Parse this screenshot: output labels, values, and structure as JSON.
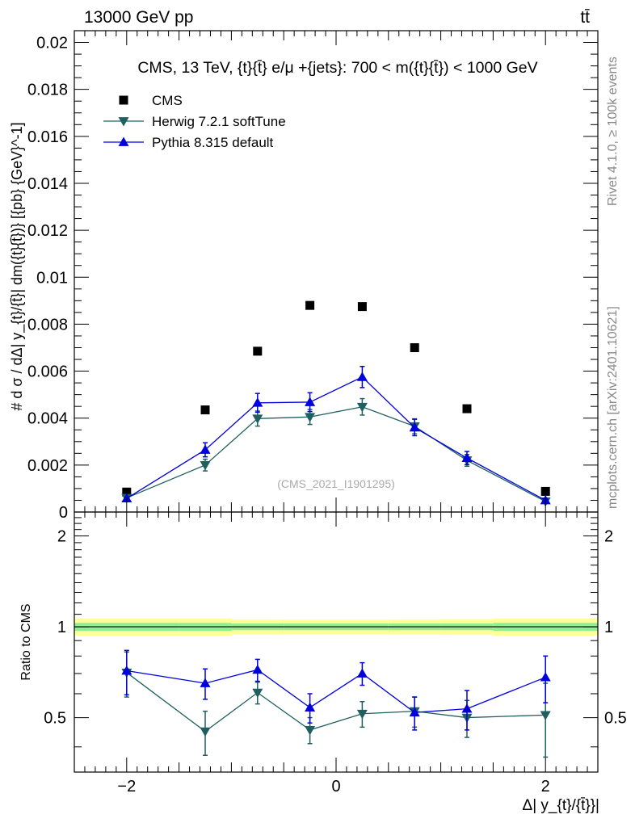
{
  "header": {
    "energy_label": "13000 GeV pp",
    "process_label": "tt̄"
  },
  "side_labels": {
    "rivet": "Rivet 4.1.0, ≥ 100k events",
    "source": "mcplots.cern.ch [arXiv:2401.10621]"
  },
  "chart_data": {
    "type": "scatter",
    "title": "CMS, 13 TeV, {t}{t̄} e/μ +{jets}: 700 < m({t}{t̄}) < 1000 GeV",
    "watermark": "(CMS_2021_I1901295)",
    "xlabel": "Δ| y_{t}/{t̄}}|",
    "ylabel": "# d σ / dΔ| y_{t}/{t̄}| dm({t}{t̄})} [{pb} {GeV}^-1]",
    "ratio_ylabel": "Ratio to CMS",
    "x_ticks": [
      "−2",
      "0",
      "2"
    ],
    "y_ticks": [
      "0",
      "0.002",
      "0.004",
      "0.006",
      "0.008",
      "0.01",
      "0.012",
      "0.014",
      "0.016",
      "0.018",
      "0.02"
    ],
    "ratio_ticks": [
      "0.5",
      "1",
      "2"
    ],
    "xlim": [
      -2.5,
      2.5
    ],
    "ylim": [
      0,
      0.0205
    ],
    "ratio_ylim": [
      0.33,
      2.4
    ],
    "x": [
      -2.0,
      -1.25,
      -0.75,
      -0.25,
      0.25,
      0.75,
      1.25,
      2.0
    ],
    "band_edges": [
      -2.5,
      -1.5,
      -1.0,
      -0.5,
      0.0,
      0.5,
      1.0,
      1.5,
      2.5
    ],
    "series": [
      {
        "name": "CMS",
        "color": "#000000",
        "marker": "square",
        "values": [
          0.00085,
          0.00435,
          0.00685,
          0.0088,
          0.00875,
          0.007,
          0.0044,
          0.00088
        ]
      },
      {
        "name": "Herwig 7.2.1 softTune",
        "color": "#1f5f5f",
        "marker": "triangle-down",
        "values": [
          0.0006,
          0.002,
          0.00398,
          0.00405,
          0.00448,
          0.00365,
          0.0022,
          0.00045
        ],
        "errors": [
          4e-05,
          0.00025,
          0.00032,
          0.00032,
          0.00035,
          0.00032,
          0.00025,
          8e-05
        ],
        "ratio": [
          0.705,
          0.45,
          0.605,
          0.455,
          0.515,
          0.525,
          0.5,
          0.51
        ],
        "ratio_errors": [
          0.12,
          0.075,
          0.05,
          0.045,
          0.05,
          0.06,
          0.07,
          0.14
        ]
      },
      {
        "name": "Pythia 8.315 default",
        "color": "#0000dd",
        "marker": "triangle-up",
        "values": [
          0.00058,
          0.00265,
          0.00465,
          0.00468,
          0.00575,
          0.0036,
          0.0023,
          0.0005
        ],
        "errors": [
          4e-05,
          0.0003,
          0.0004,
          0.0004,
          0.00045,
          0.00035,
          0.00028,
          8e-05
        ],
        "ratio": [
          0.715,
          0.65,
          0.72,
          0.54,
          0.7,
          0.52,
          0.535,
          0.68
        ],
        "ratio_errors": [
          0.12,
          0.075,
          0.06,
          0.06,
          0.06,
          0.065,
          0.08,
          0.12
        ]
      }
    ],
    "uncertainty_band": {
      "inner_color": "#90ee90",
      "outer_color": "#ffff99",
      "inner_half_width": [
        0.03,
        0.03,
        0.025,
        0.025,
        0.025,
        0.025,
        0.025,
        0.03
      ],
      "outer_half_width": [
        0.065,
        0.065,
        0.058,
        0.055,
        0.055,
        0.058,
        0.06,
        0.065
      ]
    }
  }
}
